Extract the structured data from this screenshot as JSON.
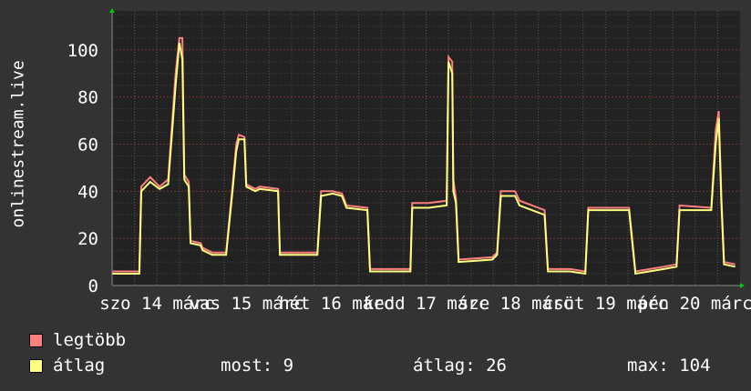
{
  "chart_data": {
    "type": "line",
    "ylabel": "onlinestream.live",
    "ylim": [
      0,
      115
    ],
    "yticks": [
      0,
      20,
      40,
      60,
      80,
      100
    ],
    "xlim_hours": [
      0,
      168
    ],
    "xtick_labels": [
      "szo 14 márc",
      "vas 15 márc",
      "hét 16 márc",
      "kedd 17 márc",
      "sze 18 márc",
      "csüt 19 márc",
      "pén 20 márc"
    ],
    "grid": true,
    "series": [
      {
        "name": "legtöbb",
        "color": "#ff7f7f",
        "points": [
          [
            0,
            6
          ],
          [
            7.3,
            6
          ],
          [
            7.8,
            42
          ],
          [
            10.2,
            46
          ],
          [
            12.7,
            42
          ],
          [
            15,
            45
          ],
          [
            17,
            90
          ],
          [
            18,
            105
          ],
          [
            18.8,
            105
          ],
          [
            19.3,
            47
          ],
          [
            20.5,
            44
          ],
          [
            21,
            19
          ],
          [
            23.7,
            18
          ],
          [
            24.2,
            16
          ],
          [
            26.8,
            14
          ],
          [
            30.5,
            14
          ],
          [
            32.2,
            42
          ],
          [
            33.2,
            60
          ],
          [
            33.9,
            64
          ],
          [
            35.4,
            63
          ],
          [
            35.9,
            43
          ],
          [
            38.3,
            41
          ],
          [
            39.5,
            42
          ],
          [
            44.4,
            41
          ],
          [
            44.9,
            14
          ],
          [
            54.9,
            14
          ],
          [
            55.9,
            40
          ],
          [
            59,
            40
          ],
          [
            61.5,
            39
          ],
          [
            62.7,
            34
          ],
          [
            68.3,
            33
          ],
          [
            69,
            7
          ],
          [
            79.8,
            7
          ],
          [
            80.3,
            35
          ],
          [
            84.7,
            35
          ],
          [
            89.5,
            36
          ],
          [
            90,
            97
          ],
          [
            91,
            95
          ],
          [
            91.3,
            45
          ],
          [
            92,
            37
          ],
          [
            92.7,
            11
          ],
          [
            101.7,
            12
          ],
          [
            103,
            14
          ],
          [
            104,
            40
          ],
          [
            107.8,
            40
          ],
          [
            109,
            36
          ],
          [
            115.7,
            32
          ],
          [
            116.6,
            7
          ],
          [
            122.5,
            7
          ],
          [
            126.6,
            6
          ],
          [
            127.4,
            33
          ],
          [
            138.3,
            33
          ],
          [
            140,
            6
          ],
          [
            147.6,
            8
          ],
          [
            151,
            9
          ],
          [
            151.8,
            34
          ],
          [
            160.3,
            33
          ],
          [
            161.5,
            66
          ],
          [
            162.3,
            74
          ],
          [
            163,
            38
          ],
          [
            163.7,
            10
          ],
          [
            166.7,
            9
          ]
        ]
      },
      {
        "name": "átlag",
        "color": "#ffff7f",
        "points": [
          [
            0,
            5
          ],
          [
            7.3,
            5
          ],
          [
            7.8,
            40
          ],
          [
            10.2,
            44
          ],
          [
            12.7,
            41
          ],
          [
            15,
            43
          ],
          [
            17,
            85
          ],
          [
            18,
            103
          ],
          [
            18.8,
            96
          ],
          [
            19.3,
            45
          ],
          [
            20.5,
            42
          ],
          [
            21,
            18
          ],
          [
            23.7,
            17
          ],
          [
            24.2,
            15
          ],
          [
            26.8,
            13
          ],
          [
            30.5,
            13
          ],
          [
            32.2,
            40
          ],
          [
            33.2,
            57
          ],
          [
            33.9,
            62
          ],
          [
            35.4,
            62
          ],
          [
            35.9,
            42
          ],
          [
            38.3,
            40
          ],
          [
            39.5,
            41
          ],
          [
            44.4,
            40
          ],
          [
            44.9,
            13
          ],
          [
            54.9,
            13
          ],
          [
            55.9,
            38
          ],
          [
            59,
            39
          ],
          [
            61.5,
            38
          ],
          [
            62.7,
            33
          ],
          [
            68.3,
            32
          ],
          [
            69,
            6
          ],
          [
            79.8,
            6
          ],
          [
            80.3,
            33
          ],
          [
            84.7,
            33
          ],
          [
            89.5,
            34
          ],
          [
            90,
            95
          ],
          [
            91,
            90
          ],
          [
            91.3,
            40
          ],
          [
            92,
            35
          ],
          [
            92.7,
            10
          ],
          [
            101.7,
            11
          ],
          [
            103,
            13
          ],
          [
            104,
            38
          ],
          [
            107.8,
            38
          ],
          [
            109,
            34
          ],
          [
            115.7,
            30
          ],
          [
            116.6,
            6
          ],
          [
            122.5,
            6
          ],
          [
            126.6,
            5
          ],
          [
            127.4,
            32
          ],
          [
            138.3,
            32
          ],
          [
            140,
            5
          ],
          [
            147.6,
            7
          ],
          [
            151,
            8
          ],
          [
            151.8,
            32
          ],
          [
            160.3,
            32
          ],
          [
            161.5,
            60
          ],
          [
            162.3,
            71
          ],
          [
            163,
            35
          ],
          [
            163.7,
            9
          ],
          [
            166.7,
            8
          ]
        ]
      }
    ]
  },
  "legend": {
    "max_label": "legtöbb",
    "avg_label": "átlag",
    "current": "most: 9",
    "average": "átlag: 26",
    "maximum": "max: 104"
  }
}
